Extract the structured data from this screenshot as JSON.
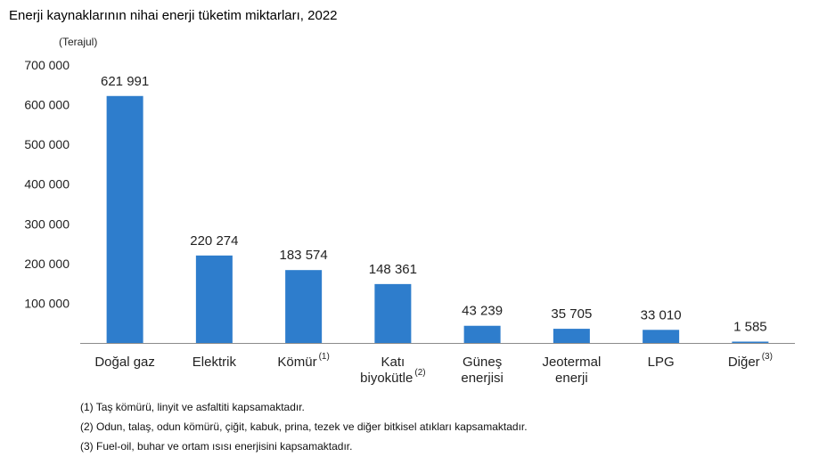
{
  "chart_data": {
    "type": "bar",
    "title": "Enerji kaynaklarının nihai enerji tüketim miktarları, 2022",
    "ylabel": "(Terajul)",
    "xlabel": "",
    "ylim": [
      0,
      700000
    ],
    "yticks": [
      100000,
      200000,
      300000,
      400000,
      500000,
      600000,
      700000
    ],
    "ytick_labels": [
      "100 000",
      "200 000",
      "300 000",
      "400 000",
      "500 000",
      "600 000",
      "700 000"
    ],
    "grid": false,
    "bar_color": "#2e7dcc",
    "categories": [
      {
        "lines": [
          "Doğal gaz"
        ],
        "sup": ""
      },
      {
        "lines": [
          "Elektrik"
        ],
        "sup": ""
      },
      {
        "lines": [
          "Kömür"
        ],
        "sup": "(1)"
      },
      {
        "lines": [
          "Katı",
          "biyokütle"
        ],
        "sup": "(2)"
      },
      {
        "lines": [
          "Güneş",
          "enerjisi"
        ],
        "sup": ""
      },
      {
        "lines": [
          "Jeotermal",
          "enerji"
        ],
        "sup": ""
      },
      {
        "lines": [
          "LPG"
        ],
        "sup": ""
      },
      {
        "lines": [
          "Diğer"
        ],
        "sup": "(3)"
      }
    ],
    "values": [
      621991,
      220274,
      183574,
      148361,
      43239,
      35705,
      33010,
      1585
    ],
    "value_labels": [
      "621 991",
      "220 274",
      "183 574",
      "148 361",
      "43 239",
      "35 705",
      "33 010",
      "1 585"
    ]
  },
  "footnotes": [
    "(1) Taş kömürü, linyit ve asfaltiti kapsamaktadır.",
    "(2) Odun, talaş, odun kömürü, çiğit, kabuk, prina, tezek ve diğer bitkisel atıkları kapsamaktadır.",
    "(3) Fuel-oil, buhar ve ortam ısısı enerjisini kapsamaktadır."
  ]
}
